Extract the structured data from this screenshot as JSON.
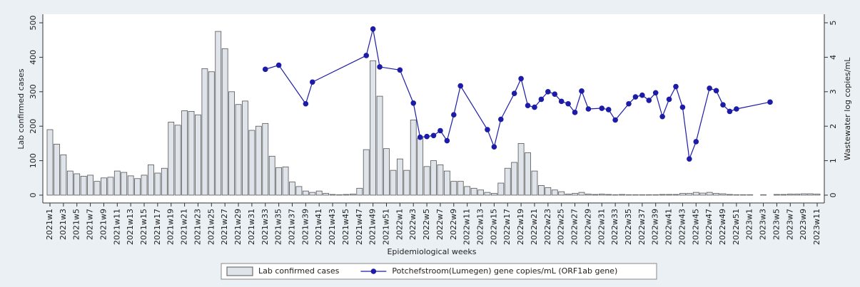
{
  "chart_data": {
    "type": "bar_line",
    "x_label": "Epidemiological weeks",
    "y_label": "Lab confirmed cases",
    "y2_label": "Wastewater log copies/mL",
    "categories": [
      "2021w1",
      null,
      "2021w3",
      null,
      "2021w5",
      null,
      "2021w7",
      null,
      "2021w9",
      null,
      "2021w11",
      null,
      "2021w13",
      null,
      "2021w15",
      null,
      "2021w17",
      null,
      "2021w19",
      null,
      "2021w21",
      null,
      "2021w23",
      null,
      "2021w25",
      null,
      "2021w27",
      null,
      "2021w29",
      null,
      "2021w31",
      null,
      "2021w33",
      null,
      "2021w35",
      null,
      "2021w37",
      null,
      "2021w39",
      null,
      "2021w41",
      null,
      "2021w43",
      null,
      "2021w45",
      null,
      "2021w47",
      null,
      "2021w49",
      null,
      "2021w51",
      null,
      "2022w1",
      null,
      "2022w3",
      null,
      "2022w5",
      null,
      "2022w7",
      null,
      "2022w9",
      null,
      "2022w11",
      null,
      "2022w13",
      null,
      "2022w15",
      null,
      "2022w17",
      null,
      "2022w19",
      null,
      "2022w21",
      null,
      "2022w23",
      null,
      "2022w25",
      null,
      "2022w27",
      null,
      "2022w29",
      null,
      "2022w31",
      null,
      "2022w33",
      null,
      "2022w35",
      null,
      "2022w37",
      null,
      "2022w39",
      null,
      "2022w41",
      null,
      "2022w43",
      null,
      "2022w45",
      null,
      "2022w47",
      null,
      "2022w49",
      null,
      "2022w51",
      null,
      "2023w1",
      null,
      "2023w3",
      null,
      "2023w5",
      null,
      "2023w7",
      null,
      "2023w9",
      null,
      "2023w11"
    ],
    "series": [
      {
        "name": "Lab confirmed cases",
        "type": "bar",
        "color": "#dfe3ea",
        "edge_color": "#555555",
        "values": [
          190,
          148,
          117,
          70,
          62,
          55,
          58,
          40,
          50,
          52,
          70,
          66,
          56,
          48,
          58,
          88,
          64,
          78,
          212,
          203,
          245,
          243,
          233,
          367,
          358,
          475,
          425,
          300,
          263,
          273,
          188,
          200,
          208,
          113,
          80,
          82,
          38,
          25,
          12,
          8,
          12,
          5,
          2,
          1,
          2,
          3,
          20,
          132,
          390,
          287,
          135,
          72,
          105,
          72,
          218,
          165,
          83,
          100,
          88,
          70,
          40,
          40,
          25,
          20,
          15,
          8,
          5,
          35,
          78,
          95,
          150,
          123,
          70,
          28,
          22,
          15,
          10,
          3,
          5,
          8,
          3,
          2,
          3,
          2,
          1,
          2,
          1,
          1,
          1,
          1,
          1,
          2,
          2,
          2,
          5,
          5,
          8,
          6,
          8,
          5,
          4,
          2,
          1,
          1,
          1,
          0,
          1,
          0,
          2,
          2,
          3,
          3,
          4,
          4,
          3
        ]
      },
      {
        "name": "Potchefstroom(Lumegen) gene copies/mL (ORF1ab gene)",
        "type": "line",
        "axis": "y2",
        "color": "#1c1ca8",
        "values": [
          null,
          null,
          null,
          null,
          null,
          null,
          null,
          null,
          null,
          null,
          null,
          null,
          null,
          null,
          null,
          null,
          null,
          null,
          null,
          null,
          null,
          null,
          null,
          null,
          null,
          null,
          null,
          null,
          null,
          null,
          null,
          null,
          3.65,
          null,
          3.77,
          null,
          null,
          null,
          2.65,
          3.28,
          null,
          null,
          null,
          null,
          null,
          null,
          null,
          4.05,
          4.82,
          3.72,
          null,
          null,
          3.63,
          null,
          2.67,
          1.68,
          1.7,
          1.73,
          1.87,
          1.58,
          2.33,
          3.17,
          null,
          null,
          null,
          1.9,
          1.4,
          2.2,
          null,
          2.95,
          3.38,
          2.6,
          2.55,
          2.78,
          3.0,
          2.93,
          2.72,
          2.65,
          2.4,
          3.02,
          2.5,
          null,
          2.52,
          2.48,
          2.18,
          null,
          2.65,
          2.85,
          2.9,
          2.75,
          2.97,
          2.28,
          2.78,
          3.15,
          2.55,
          1.05,
          1.55,
          null,
          3.1,
          3.03,
          2.62,
          2.43,
          2.5,
          null,
          null,
          null,
          null,
          2.7,
          null,
          null,
          null,
          null,
          null,
          null,
          null
        ]
      }
    ],
    "ylim": [
      0,
      500
    ],
    "yticks": [
      0,
      100,
      200,
      300,
      400,
      500
    ],
    "y2lim": [
      0,
      5
    ],
    "y2ticks": [
      0,
      1,
      2,
      3,
      4,
      5
    ],
    "grid": false,
    "legend": "bottom"
  }
}
